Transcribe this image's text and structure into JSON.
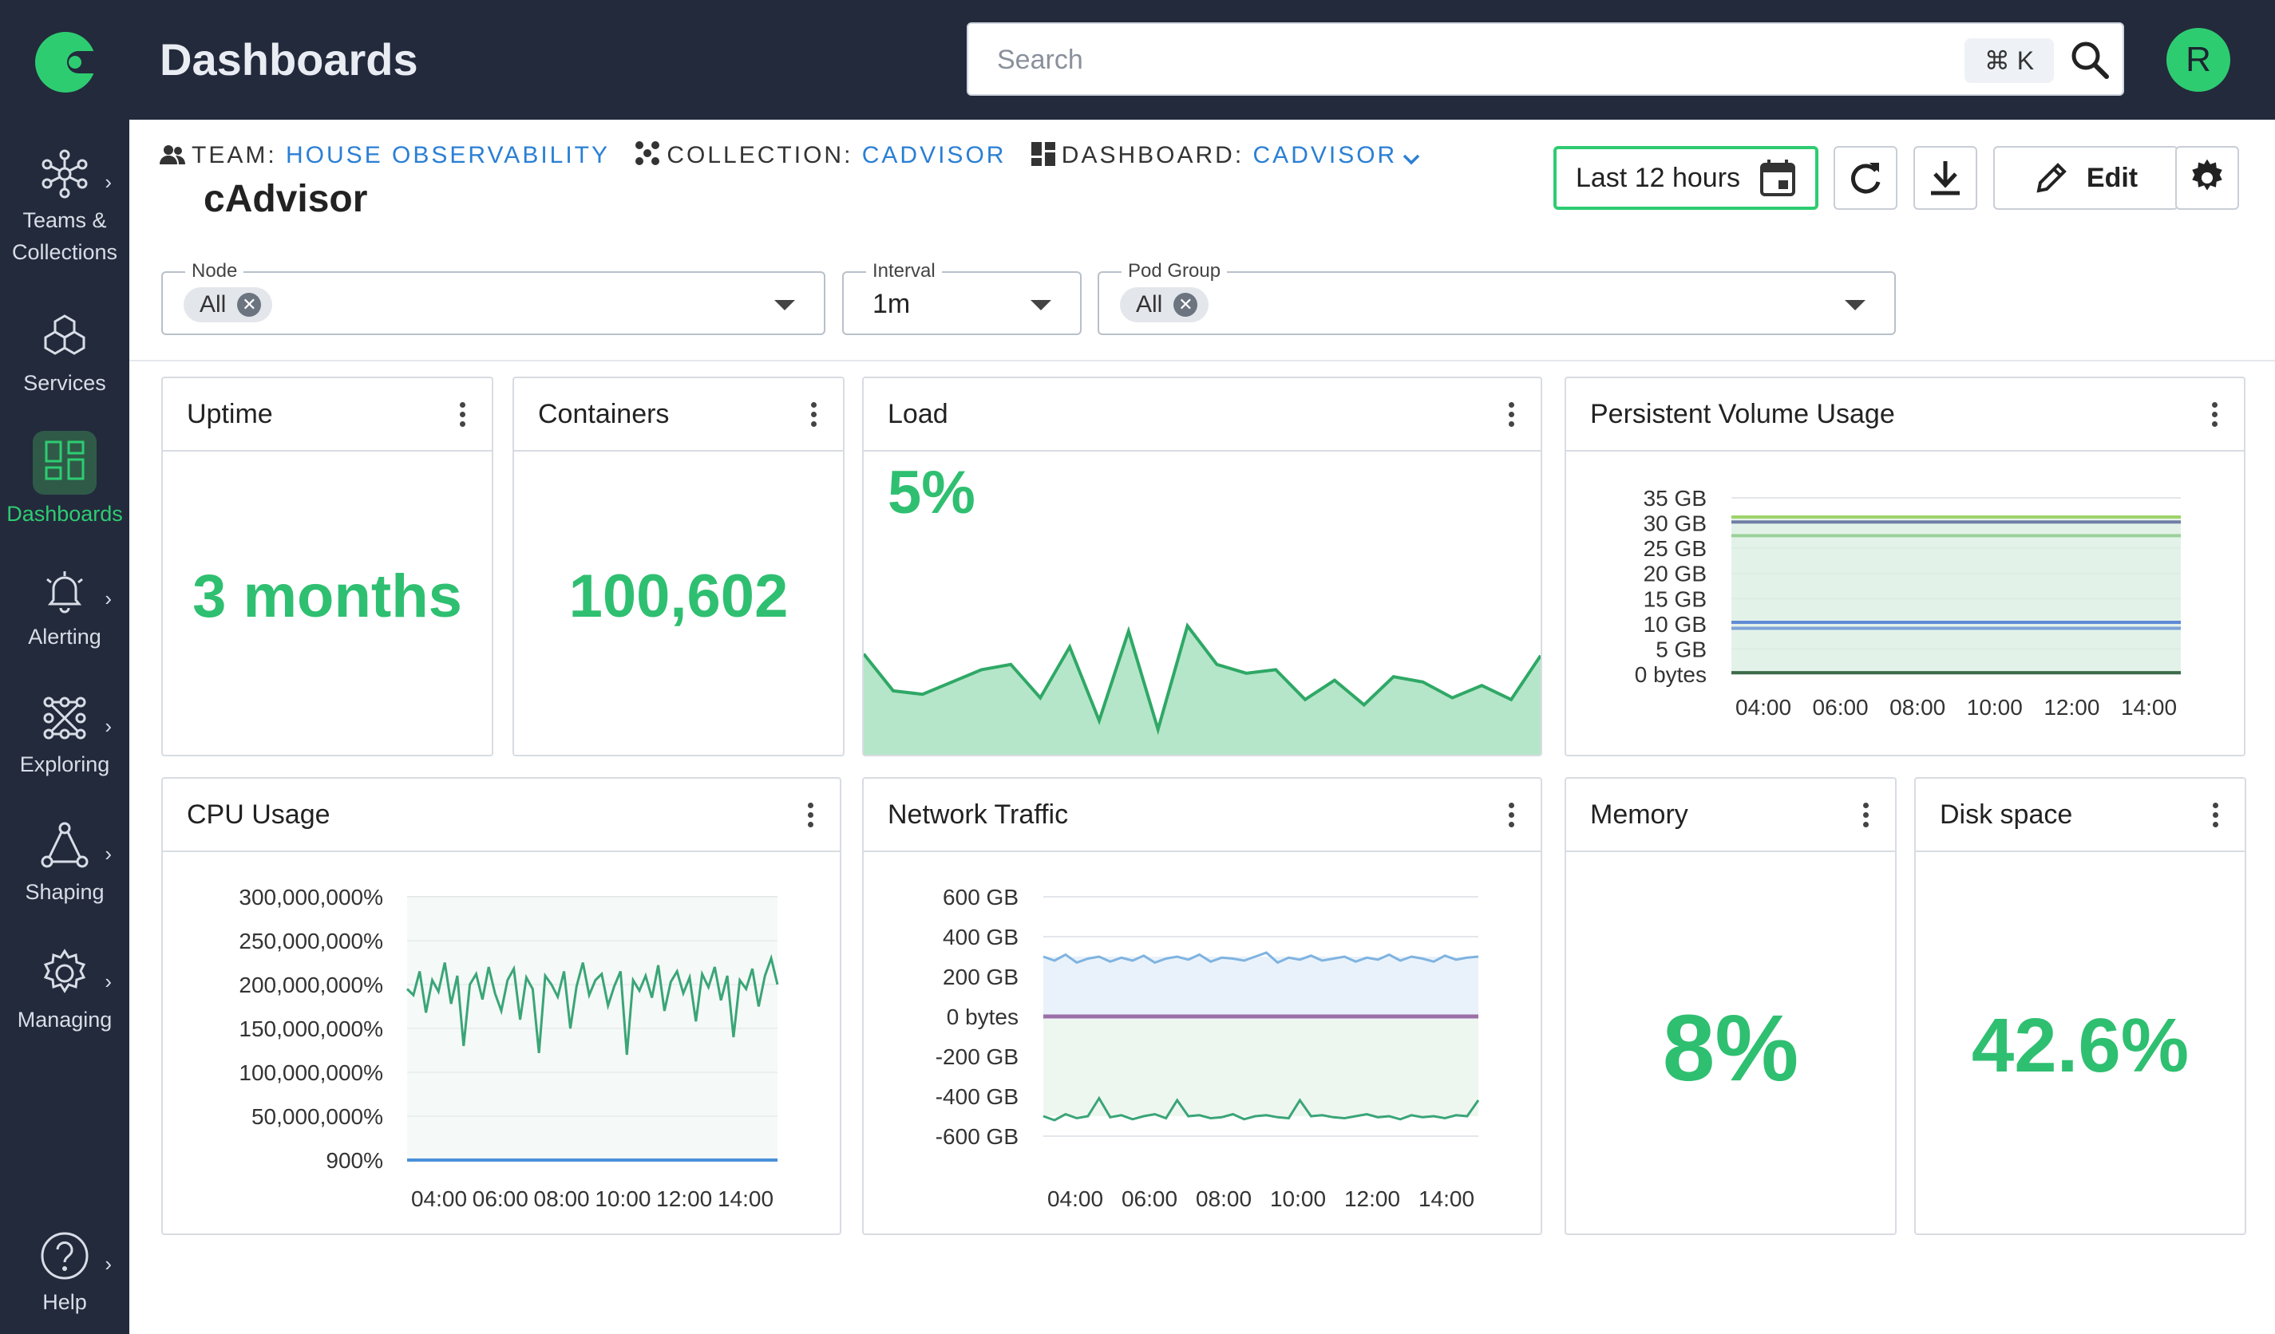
{
  "header": {
    "title": "Dashboards",
    "search_placeholder": "Search",
    "shortcut": "⌘ K",
    "avatar_initial": "R"
  },
  "sidebar": {
    "items": [
      {
        "label_line1": "Teams &",
        "label_line2": "Collections",
        "icon": "network-icon"
      },
      {
        "label": "Services",
        "icon": "cubes-icon"
      },
      {
        "label": "Dashboards",
        "icon": "dashboard-grid-icon",
        "active": true
      },
      {
        "label": "Alerting",
        "icon": "bell-alarm-icon"
      },
      {
        "label": "Exploring",
        "icon": "nodes-grid-icon"
      },
      {
        "label": "Shaping",
        "icon": "triangle-nodes-icon"
      },
      {
        "label": "Managing",
        "icon": "gear-icon"
      },
      {
        "label": "Help",
        "icon": "help-circle-icon"
      }
    ]
  },
  "breadcrumb": {
    "team_label": "TEAM:",
    "team_value": "HOUSE OBSERVABILITY",
    "collection_label": "COLLECTION:",
    "collection_value": "CADVISOR",
    "dashboard_label": "DASHBOARD:",
    "dashboard_value": "CADVISOR"
  },
  "dashboard_title": "cAdvisor",
  "toolbar": {
    "time_range": "Last 12 hours",
    "edit_label": "Edit"
  },
  "filters": {
    "node": {
      "label": "Node",
      "chip": "All"
    },
    "interval": {
      "label": "Interval",
      "value": "1m"
    },
    "pod_group": {
      "label": "Pod Group",
      "chip": "All"
    }
  },
  "panels": {
    "uptime": {
      "title": "Uptime",
      "value": "3 months"
    },
    "containers": {
      "title": "Containers",
      "value": "100,602"
    },
    "load": {
      "title": "Load",
      "value": "5%"
    },
    "pv": {
      "title": "Persistent Volume Usage"
    },
    "cpu": {
      "title": "CPU Usage"
    },
    "network": {
      "title": "Network Traffic"
    },
    "memory": {
      "title": "Memory",
      "value": "8%"
    },
    "disk": {
      "title": "Disk space",
      "value": "42.6%"
    }
  },
  "colors": {
    "accent": "#2ecc71",
    "value_green": "#2fbf71",
    "sidebar_bg": "#232a3c",
    "link_blue": "#2a7fd4"
  },
  "chart_data": [
    {
      "id": "load",
      "type": "area",
      "values": [
        5.2,
        3.1,
        2.9,
        3.6,
        4.3,
        4.6,
        2.7,
        5.6,
        1.4,
        6.5,
        0.9,
        6.8,
        4.6,
        4.1,
        4.3,
        2.6,
        3.7,
        2.3,
        3.9,
        3.6,
        2.7,
        3.4,
        2.6,
        5.1
      ],
      "ylim": [
        0,
        10
      ]
    },
    {
      "id": "pv",
      "type": "line",
      "ytick_labels": [
        "35 GB",
        "30 GB",
        "25 GB",
        "20 GB",
        "15 GB",
        "10 GB",
        "5 GB",
        "0 bytes"
      ],
      "xtick_labels": [
        "04:00",
        "06:00",
        "08:00",
        "10:00",
        "12:00",
        "14:00"
      ],
      "ylim": [
        0,
        35
      ],
      "series_values": [
        31.2,
        30.2,
        27.5,
        10.3,
        9.1,
        0.3
      ],
      "series_colors": [
        "#9ed36a",
        "#6f7fa5",
        "#9ad19a",
        "#5f8ad6",
        "#7fa3d9",
        "#3d6b4a"
      ]
    },
    {
      "id": "cpu",
      "type": "line",
      "ytick_labels": [
        "300,000,000%",
        "250,000,000%",
        "200,000,000%",
        "150,000,000%",
        "100,000,000%",
        "50,000,000%",
        "900%"
      ],
      "xtick_labels": [
        "04:00",
        "06:00",
        "08:00",
        "10:00",
        "12:00",
        "14:00"
      ],
      "ylim": [
        0,
        300000000
      ],
      "series": [
        {
          "color": "#3aa577",
          "values": [
            195000000,
            188000000,
            215000000,
            168000000,
            205000000,
            192000000,
            225000000,
            178000000,
            210000000,
            130000000,
            200000000,
            212000000,
            183000000,
            220000000,
            190000000,
            170000000,
            205000000,
            218000000,
            160000000,
            208000000,
            195000000,
            122000000,
            210000000,
            200000000,
            186000000,
            215000000,
            150000000,
            198000000,
            225000000,
            188000000,
            205000000,
            212000000,
            176000000,
            198000000,
            215000000,
            120000000,
            205000000,
            193000000,
            210000000,
            185000000,
            222000000,
            170000000,
            203000000,
            215000000,
            190000000,
            208000000,
            158000000,
            212000000,
            197000000,
            220000000,
            182000000,
            210000000,
            140000000,
            205000000,
            195000000,
            218000000,
            175000000,
            210000000,
            230000000,
            200000000
          ]
        },
        {
          "color": "#4a90d9",
          "values": [
            900,
            900
          ]
        }
      ]
    },
    {
      "id": "network",
      "type": "line",
      "ytick_labels": [
        "600 GB",
        "400 GB",
        "200 GB",
        "0 bytes",
        "-200 GB",
        "-400 GB",
        "-600 GB"
      ],
      "xtick_labels": [
        "04:00",
        "06:00",
        "08:00",
        "10:00",
        "12:00",
        "14:00"
      ],
      "ylim": [
        -600,
        600
      ],
      "series": [
        {
          "color": "#7fb3e0",
          "values": [
            300,
            280,
            310,
            270,
            290,
            300,
            275,
            295,
            280,
            305,
            270,
            290,
            300,
            285,
            310,
            275,
            295,
            290,
            280,
            300,
            320,
            270,
            295,
            285,
            305,
            280,
            290,
            300,
            275,
            295,
            285,
            310,
            280,
            300,
            290,
            275,
            305,
            285,
            295,
            300
          ]
        },
        {
          "color": "#9b6fa8",
          "values": [
            0,
            0
          ]
        },
        {
          "color": "#3aa577",
          "values": [
            -500,
            -520,
            -490,
            -510,
            -500,
            -410,
            -505,
            -495,
            -515,
            -500,
            -490,
            -510,
            -420,
            -500,
            -495,
            -510,
            -505,
            -490,
            -515,
            -500,
            -495,
            -505,
            -510,
            -420,
            -500,
            -495,
            -505,
            -510,
            -500,
            -490,
            -505,
            -500,
            -515,
            -495,
            -505,
            -500,
            -510,
            -495,
            -500,
            -420
          ]
        }
      ]
    }
  ]
}
